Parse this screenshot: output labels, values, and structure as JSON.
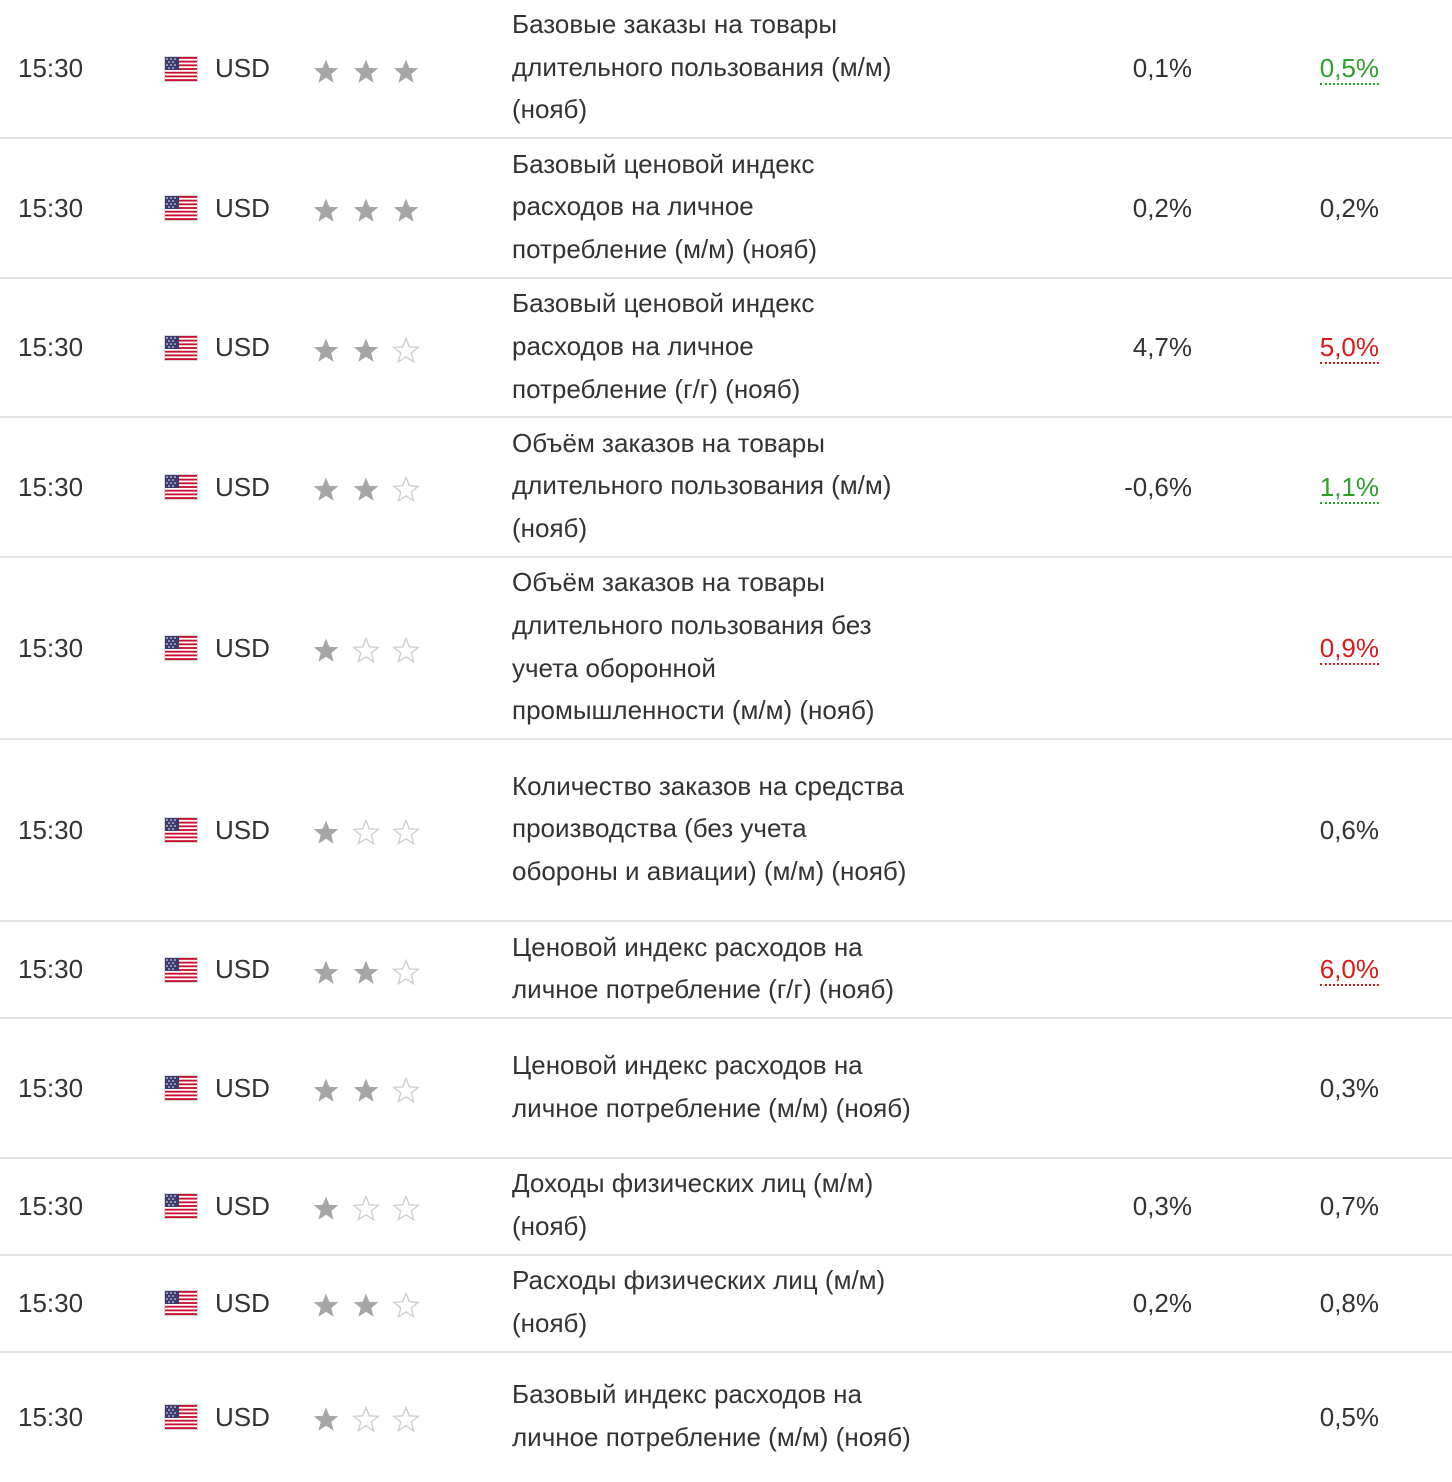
{
  "colors": {
    "positive": "#2e9e2e",
    "negative": "#d91a1a",
    "star_filled": "#a6a6a6",
    "star_empty_stroke": "#cfcfcf",
    "divider": "#e3e3e3"
  },
  "icons": {
    "flag": "us-flag-icon",
    "star_filled": "filled-star-icon",
    "star_empty": "empty-star-icon"
  },
  "events": [
    {
      "time": "15:30",
      "currency": "USD",
      "importance": 3,
      "name": "Базовые заказы на товары длительного пользования (м/м) (нояб)",
      "actual": "0,1%",
      "forecast": "0,5%",
      "forecast_status": "positive"
    },
    {
      "time": "15:30",
      "currency": "USD",
      "importance": 3,
      "name": "Базовый ценовой индекс расходов на личное потребление (м/м) (нояб)",
      "actual": "0,2%",
      "forecast": "0,2%",
      "forecast_status": "neutral"
    },
    {
      "time": "15:30",
      "currency": "USD",
      "importance": 2,
      "name": "Базовый ценовой индекс расходов на личное потребление (г/г) (нояб)",
      "actual": "4,7%",
      "forecast": "5,0%",
      "forecast_status": "negative"
    },
    {
      "time": "15:30",
      "currency": "USD",
      "importance": 2,
      "name": "Объём заказов на товары длительного пользования (м/м) (нояб)",
      "actual": "-0,6%",
      "forecast": "1,1%",
      "forecast_status": "positive"
    },
    {
      "time": "15:30",
      "currency": "USD",
      "importance": 1,
      "name": "Объём заказов на товары длительного пользования без учета оборонной промышленности (м/м) (нояб)",
      "actual": "",
      "forecast": "0,9%",
      "forecast_status": "negative"
    },
    {
      "time": "15:30",
      "currency": "USD",
      "importance": 1,
      "name": "Количество заказов на средства производства (без учета обороны и авиации) (м/м) (нояб)",
      "actual": "",
      "forecast": "0,6%",
      "forecast_status": "neutral"
    },
    {
      "time": "15:30",
      "currency": "USD",
      "importance": 2,
      "name": "Ценовой индекс расходов на личное потребление (г/г) (нояб)",
      "actual": "",
      "forecast": "6,0%",
      "forecast_status": "negative"
    },
    {
      "time": "15:30",
      "currency": "USD",
      "importance": 2,
      "name": "Ценовой индекс расходов на личное потребление (м/м) (нояб)",
      "actual": "",
      "forecast": "0,3%",
      "forecast_status": "neutral"
    },
    {
      "time": "15:30",
      "currency": "USD",
      "importance": 1,
      "name": "Доходы физических лиц (м/м) (нояб)",
      "actual": "0,3%",
      "forecast": "0,7%",
      "forecast_status": "neutral"
    },
    {
      "time": "15:30",
      "currency": "USD",
      "importance": 2,
      "name": "Расходы физических лиц (м/м) (нояб)",
      "actual": "0,2%",
      "forecast": "0,8%",
      "forecast_status": "neutral"
    },
    {
      "time": "15:30",
      "currency": "USD",
      "importance": 1,
      "name": "Базовый индекс расходов на личное потребление (м/м) (нояб)",
      "actual": "",
      "forecast": "0,5%",
      "forecast_status": "neutral"
    }
  ]
}
